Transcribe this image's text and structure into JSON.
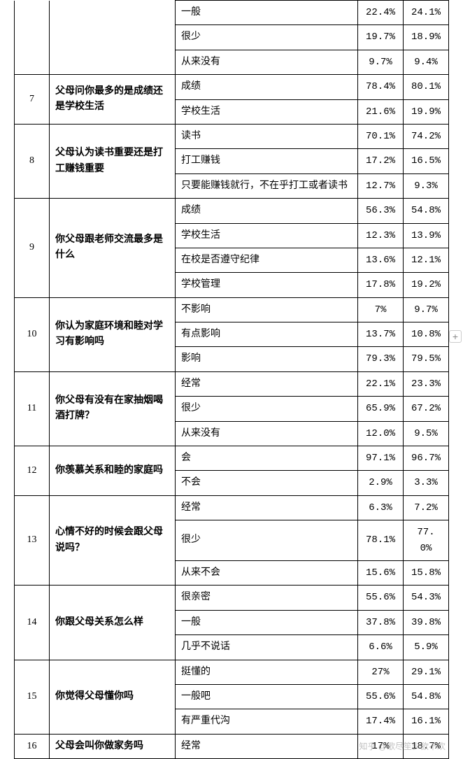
{
  "questions": [
    {
      "num": "",
      "text": "",
      "hideNumQuestion": true,
      "options": [
        {
          "label": "一般",
          "p1": "22.4%",
          "p2": "24.1%"
        },
        {
          "label": "很少",
          "p1": "19.7%",
          "p2": "18.9%"
        },
        {
          "label": "从来没有",
          "p1": "9.7%",
          "p2": "9.4%"
        }
      ]
    },
    {
      "num": "7",
      "text": "父母问你最多的是成绩还是学校生活",
      "options": [
        {
          "label": "成绩",
          "p1": "78.4%",
          "p2": "80.1%"
        },
        {
          "label": "学校生活",
          "p1": "21.6%",
          "p2": "19.9%"
        }
      ]
    },
    {
      "num": "8",
      "text": "父母认为读书重要还是打工赚钱重要",
      "options": [
        {
          "label": "读书",
          "p1": "70.1%",
          "p2": "74.2%"
        },
        {
          "label": "打工赚钱",
          "p1": "17.2%",
          "p2": "16.5%"
        },
        {
          "label": "只要能赚钱就行，不在乎打工或者读书",
          "p1": "12.7%",
          "p2": "9.3%"
        }
      ]
    },
    {
      "num": "9",
      "text": "你父母跟老师交流最多是什么",
      "options": [
        {
          "label": "成绩",
          "p1": "56.3%",
          "p2": "54.8%"
        },
        {
          "label": "学校生活",
          "p1": "12.3%",
          "p2": "13.9%"
        },
        {
          "label": "在校是否遵守纪律",
          "p1": "13.6%",
          "p2": "12.1%"
        },
        {
          "label": "学校管理",
          "p1": "17.8%",
          "p2": "19.2%"
        }
      ]
    },
    {
      "num": "10",
      "text": "你认为家庭环境和睦对学习有影响吗",
      "options": [
        {
          "label": "不影响",
          "p1": "7%",
          "p2": "9.7%"
        },
        {
          "label": "有点影响",
          "p1": "13.7%",
          "p2": "10.8%"
        },
        {
          "label": "影响",
          "p1": "79.3%",
          "p2": "79.5%"
        }
      ]
    },
    {
      "num": "11",
      "text": "你父母有没有在家抽烟喝酒打牌？",
      "options": [
        {
          "label": "经常",
          "p1": "22.1%",
          "p2": "23.3%"
        },
        {
          "label": "很少",
          "p1": "65.9%",
          "p2": "67.2%"
        },
        {
          "label": "从来没有",
          "p1": "12.0%",
          "p2": "9.5%"
        }
      ]
    },
    {
      "num": "12",
      "text": "你羡慕关系和睦的家庭吗",
      "options": [
        {
          "label": "会",
          "p1": "97.1%",
          "p2": "96.7%"
        },
        {
          "label": "不会",
          "p1": "2.9%",
          "p2": "3.3%"
        }
      ]
    },
    {
      "num": "13",
      "text": "心情不好的时候会跟父母说吗？",
      "options": [
        {
          "label": "经常",
          "p1": "6.3%",
          "p2": "7.2%"
        },
        {
          "label": "很少",
          "p1": "78.1%",
          "p2": "77. 0%"
        },
        {
          "label": "从来不会",
          "p1": "15.6%",
          "p2": "15.8%"
        }
      ]
    },
    {
      "num": "14",
      "text": "你跟父母关系怎么样",
      "options": [
        {
          "label": "很亲密",
          "p1": "55.6%",
          "p2": "54.3%"
        },
        {
          "label": "一般",
          "p1": "37.8%",
          "p2": "39.8%"
        },
        {
          "label": "几乎不说话",
          "p1": "6.6%",
          "p2": "5.9%"
        }
      ]
    },
    {
      "num": "15",
      "text": "你觉得父母懂你吗",
      "options": [
        {
          "label": "挺懂的",
          "p1": "27%",
          "p2": "29.1%"
        },
        {
          "label": "一般吧",
          "p1": "55.6%",
          "p2": "54.8%"
        },
        {
          "label": "有严重代沟",
          "p1": "17.4%",
          "p2": "16.1%"
        }
      ]
    },
    {
      "num": "16",
      "text": "父母会叫你做家务吗",
      "options": [
        {
          "label": "经常",
          "p1": "17%",
          "p2": "18.7%"
        }
      ]
    }
  ],
  "watermark": "知乎 @歌尽笙少欲不欢",
  "plusBtn": "+"
}
